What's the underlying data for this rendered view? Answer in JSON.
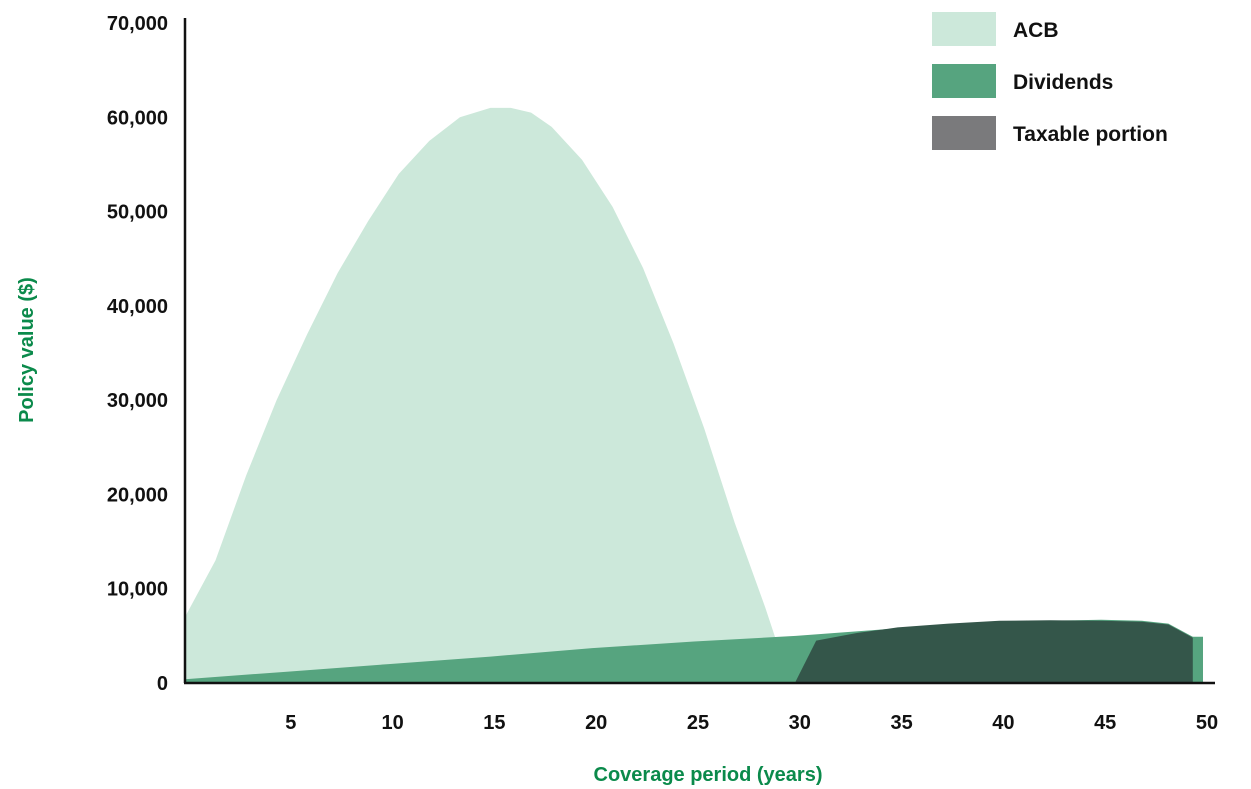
{
  "chart_data": {
    "type": "area",
    "title": "",
    "xlabel": "Coverage period (years)",
    "ylabel": "Policy value ($)",
    "xlim": [
      0,
      50
    ],
    "ylim": [
      0,
      70000
    ],
    "xticks": [
      "5",
      "10",
      "15",
      "20",
      "25",
      "30",
      "35",
      "40",
      "45",
      "50"
    ],
    "yticks": [
      "0",
      "10,000",
      "20,000",
      "30,000",
      "40,000",
      "50,000",
      "60,000",
      "70,000"
    ],
    "grid": false,
    "legend_position": "top-right",
    "series": [
      {
        "name": "ACB",
        "color": "#cce8da",
        "points": [
          [
            0,
            7000
          ],
          [
            1.5,
            13000
          ],
          [
            3,
            22000
          ],
          [
            4.5,
            30000
          ],
          [
            6,
            37000
          ],
          [
            7.5,
            43500
          ],
          [
            9,
            49000
          ],
          [
            10.5,
            54000
          ],
          [
            12,
            57500
          ],
          [
            13.5,
            60000
          ],
          [
            15,
            61000
          ],
          [
            16,
            61000
          ],
          [
            17,
            60500
          ],
          [
            18,
            59000
          ],
          [
            19.5,
            55500
          ],
          [
            21,
            50500
          ],
          [
            22.5,
            44000
          ],
          [
            24,
            36000
          ],
          [
            25.5,
            27000
          ],
          [
            27,
            17000
          ],
          [
            28.5,
            8000
          ],
          [
            29.5,
            1500
          ],
          [
            30,
            300
          ]
        ]
      },
      {
        "name": "Dividends",
        "color": "#56a47f",
        "points": [
          [
            0,
            400
          ],
          [
            5,
            1200
          ],
          [
            10,
            2000
          ],
          [
            15,
            2800
          ],
          [
            20,
            3700
          ],
          [
            25,
            4400
          ],
          [
            30,
            5000
          ],
          [
            35,
            5800
          ],
          [
            40,
            6500
          ],
          [
            45,
            6700
          ],
          [
            47,
            6600
          ],
          [
            48.3,
            6300
          ],
          [
            49.5,
            4900
          ],
          [
            50,
            4900
          ]
        ]
      },
      {
        "name": "Taxable portion",
        "color": "#34564a",
        "legend_color": "#7a7a7c",
        "points": [
          [
            30,
            200
          ],
          [
            31,
            4500
          ],
          [
            33,
            5300
          ],
          [
            35,
            5900
          ],
          [
            37.5,
            6300
          ],
          [
            40,
            6600
          ],
          [
            42.5,
            6650
          ],
          [
            45,
            6600
          ],
          [
            47,
            6500
          ],
          [
            48.3,
            6200
          ],
          [
            49.5,
            4800
          ],
          [
            49.5,
            0
          ]
        ]
      }
    ]
  }
}
